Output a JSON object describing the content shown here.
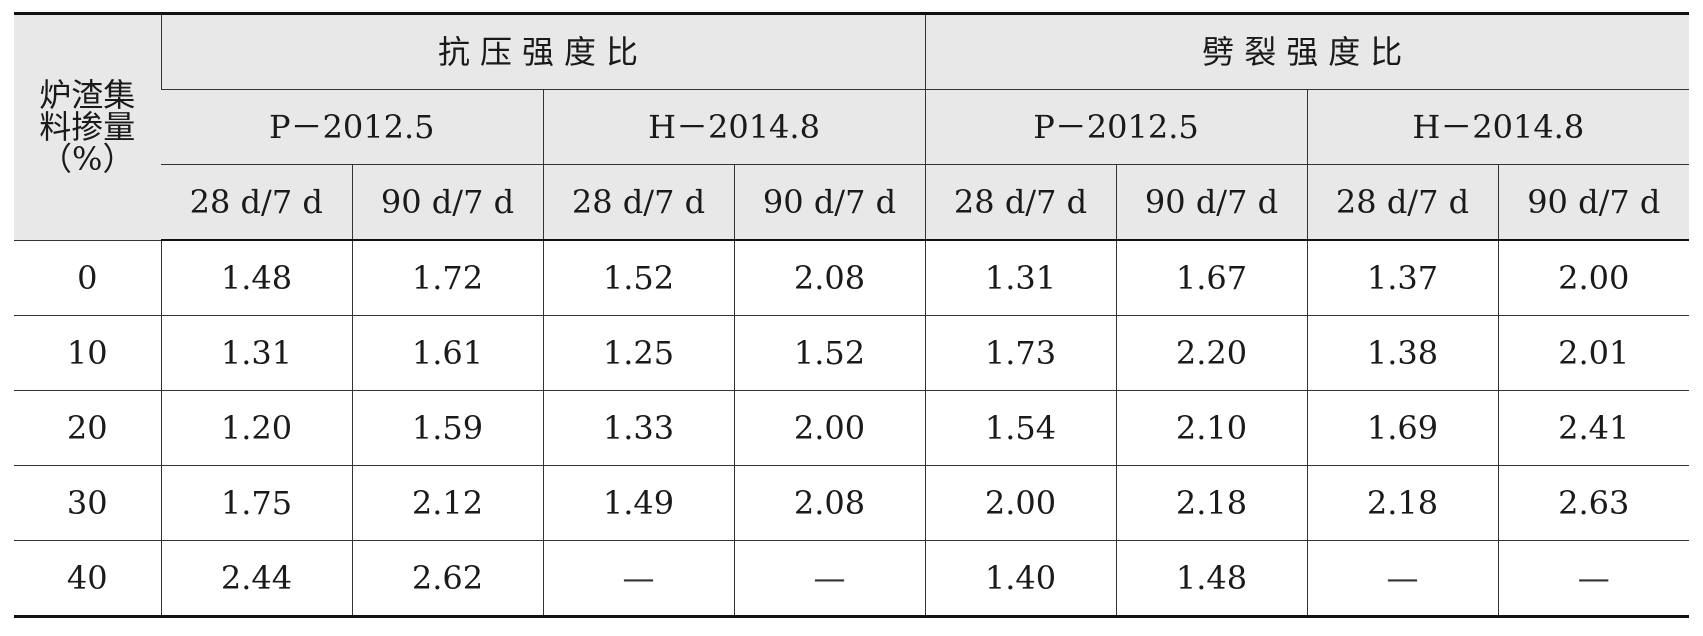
{
  "table": {
    "row_header": "炉渣集\n料掺量\n（%）",
    "groups": [
      {
        "title": "抗压强度比",
        "subgroups": [
          {
            "name": "P－2012.5",
            "columns": [
              "28 d/7 d",
              "90 d/7 d"
            ]
          },
          {
            "name": "H－2014.8",
            "columns": [
              "28 d/7 d",
              "90 d/7 d"
            ]
          }
        ]
      },
      {
        "title": "劈裂强度比",
        "subgroups": [
          {
            "name": "P－2012.5",
            "columns": [
              "28 d/7 d",
              "90 d/7 d"
            ]
          },
          {
            "name": "H－2014.8",
            "columns": [
              "28 d/7 d",
              "90 d/7 d"
            ]
          }
        ]
      }
    ],
    "rows": [
      {
        "dosage": "0",
        "values": [
          "1.48",
          "1.72",
          "1.52",
          "2.08",
          "1.31",
          "1.67",
          "1.37",
          "2.00"
        ]
      },
      {
        "dosage": "10",
        "values": [
          "1.31",
          "1.61",
          "1.25",
          "1.52",
          "1.73",
          "2.20",
          "1.38",
          "2.01"
        ]
      },
      {
        "dosage": "20",
        "values": [
          "1.20",
          "1.59",
          "1.33",
          "2.00",
          "1.54",
          "2.10",
          "1.69",
          "2.41"
        ]
      },
      {
        "dosage": "30",
        "values": [
          "1.75",
          "2.12",
          "1.49",
          "2.08",
          "2.00",
          "2.18",
          "2.18",
          "2.63"
        ]
      },
      {
        "dosage": "40",
        "values": [
          "2.44",
          "2.62",
          "—",
          "—",
          "1.40",
          "1.48",
          "—",
          "—"
        ]
      }
    ]
  }
}
